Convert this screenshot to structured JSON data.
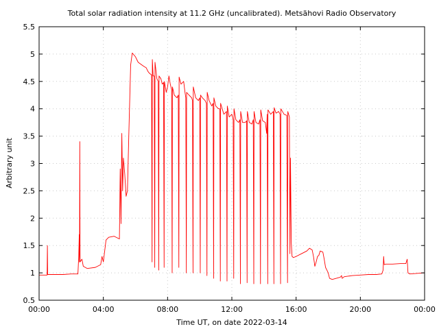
{
  "chart_data": {
    "type": "line",
    "title": "Total solar radiation intensity at 11.2 GHz (uncalibrated). Metsähovi Radio Observatory",
    "xlabel": "Time UT, on date 2022-03-14",
    "ylabel": "Arbitrary unit",
    "xlim": [
      "00:00",
      "24:00"
    ],
    "ylim": [
      0.5,
      5.5
    ],
    "grid": true,
    "x_tick_labels": [
      "00:00",
      "04:00",
      "08:00",
      "12:00",
      "16:00",
      "20:00",
      "00:00"
    ],
    "y_tick_labels": [
      "0.5",
      "1",
      "1.5",
      "2",
      "2.5",
      "3",
      "3.5",
      "4",
      "4.5",
      "5",
      "5.5"
    ],
    "line_color": "#ff0000",
    "series": [
      {
        "points": [
          [
            "00:00",
            0.96
          ],
          [
            "00:30",
            0.96
          ],
          [
            "00:31",
            1.5
          ],
          [
            "00:32",
            0.97
          ],
          [
            "01:00",
            0.97
          ],
          [
            "01:30",
            0.97
          ],
          [
            "02:00",
            0.98
          ],
          [
            "02:25",
            0.98
          ],
          [
            "02:28",
            1.3
          ],
          [
            "02:30",
            1.7
          ],
          [
            "02:31",
            1.2
          ],
          [
            "02:32",
            3.4
          ],
          [
            "02:33",
            1.2
          ],
          [
            "02:40",
            1.25
          ],
          [
            "02:45",
            1.12
          ],
          [
            "03:00",
            1.08
          ],
          [
            "03:30",
            1.1
          ],
          [
            "03:50",
            1.15
          ],
          [
            "03:55",
            1.3
          ],
          [
            "04:00",
            1.2
          ],
          [
            "04:05",
            1.4
          ],
          [
            "04:10",
            1.6
          ],
          [
            "04:20",
            1.65
          ],
          [
            "04:40",
            1.67
          ],
          [
            "05:00",
            1.62
          ],
          [
            "05:03",
            2.9
          ],
          [
            "05:06",
            1.9
          ],
          [
            "05:09",
            3.55
          ],
          [
            "05:12",
            2.5
          ],
          [
            "05:15",
            3.1
          ],
          [
            "05:20",
            2.8
          ],
          [
            "05:25",
            2.4
          ],
          [
            "05:30",
            2.5
          ],
          [
            "05:35",
            3.5
          ],
          [
            "05:42",
            4.8
          ],
          [
            "05:48",
            5.02
          ],
          [
            "06:00",
            4.95
          ],
          [
            "06:10",
            4.85
          ],
          [
            "06:30",
            4.78
          ],
          [
            "06:40",
            4.75
          ],
          [
            "06:47",
            4.68
          ],
          [
            "06:52",
            4.65
          ],
          [
            "07:00",
            4.62
          ],
          [
            "07:02",
            1.2
          ],
          [
            "07:03",
            4.9
          ],
          [
            "07:06",
            4.6
          ],
          [
            "07:10",
            4.6
          ],
          [
            "07:12",
            1.1
          ],
          [
            "07:13",
            4.85
          ],
          [
            "07:20",
            4.55
          ],
          [
            "07:25",
            4.5
          ],
          [
            "07:27",
            1.05
          ],
          [
            "07:28",
            4.6
          ],
          [
            "07:35",
            4.55
          ],
          [
            "07:40",
            4.45
          ],
          [
            "07:45",
            4.48
          ],
          [
            "07:47",
            1.1
          ],
          [
            "07:48",
            4.5
          ],
          [
            "07:55",
            4.3
          ],
          [
            "08:00",
            4.4
          ],
          [
            "08:05",
            4.6
          ],
          [
            "08:10",
            4.45
          ],
          [
            "08:15",
            4.35
          ],
          [
            "08:17",
            1.0
          ],
          [
            "08:18",
            4.4
          ],
          [
            "08:25",
            4.25
          ],
          [
            "08:35",
            4.2
          ],
          [
            "08:40",
            4.25
          ],
          [
            "08:42",
            1.1
          ],
          [
            "08:43",
            4.58
          ],
          [
            "08:50",
            4.45
          ],
          [
            "09:00",
            4.5
          ],
          [
            "09:05",
            4.3
          ],
          [
            "09:08",
            4.2
          ],
          [
            "09:10",
            1.0
          ],
          [
            "09:11",
            4.3
          ],
          [
            "09:20",
            4.25
          ],
          [
            "09:30",
            4.2
          ],
          [
            "09:33",
            4.15
          ],
          [
            "09:35",
            1.0
          ],
          [
            "09:36",
            4.4
          ],
          [
            "09:45",
            4.2
          ],
          [
            "09:55",
            4.15
          ],
          [
            "10:00",
            4.2
          ],
          [
            "10:02",
            1.0
          ],
          [
            "10:03",
            4.25
          ],
          [
            "10:10",
            4.2
          ],
          [
            "10:20",
            4.15
          ],
          [
            "10:25",
            4.1
          ],
          [
            "10:27",
            0.95
          ],
          [
            "10:28",
            4.3
          ],
          [
            "10:35",
            4.15
          ],
          [
            "10:45",
            4.05
          ],
          [
            "10:50",
            4.1
          ],
          [
            "10:52",
            0.9
          ],
          [
            "10:53",
            4.2
          ],
          [
            "11:00",
            4.05
          ],
          [
            "11:10",
            4.0
          ],
          [
            "11:15",
            4.0
          ],
          [
            "11:17",
            0.85
          ],
          [
            "11:18",
            4.1
          ],
          [
            "11:30",
            3.9
          ],
          [
            "11:40",
            3.95
          ],
          [
            "11:42",
            0.85
          ],
          [
            "11:43",
            4.05
          ],
          [
            "11:50",
            3.85
          ],
          [
            "12:00",
            3.9
          ],
          [
            "12:05",
            3.8
          ],
          [
            "12:07",
            0.9
          ],
          [
            "12:08",
            4.0
          ],
          [
            "12:15",
            3.8
          ],
          [
            "12:25",
            3.75
          ],
          [
            "12:30",
            3.8
          ],
          [
            "12:32",
            0.8
          ],
          [
            "12:33",
            3.95
          ],
          [
            "12:40",
            3.75
          ],
          [
            "12:50",
            3.75
          ],
          [
            "12:55",
            3.78
          ],
          [
            "12:57",
            0.82
          ],
          [
            "12:58",
            3.95
          ],
          [
            "13:05",
            3.75
          ],
          [
            "13:15",
            3.72
          ],
          [
            "13:20",
            3.8
          ],
          [
            "13:22",
            0.8
          ],
          [
            "13:23",
            3.95
          ],
          [
            "13:30",
            3.75
          ],
          [
            "13:40",
            3.72
          ],
          [
            "13:45",
            3.8
          ],
          [
            "13:47",
            0.8
          ],
          [
            "13:48",
            3.98
          ],
          [
            "13:55",
            3.78
          ],
          [
            "14:05",
            3.75
          ],
          [
            "14:10",
            3.55
          ],
          [
            "14:12",
            3.9
          ],
          [
            "14:14",
            0.8
          ],
          [
            "14:15",
            3.98
          ],
          [
            "14:25",
            3.9
          ],
          [
            "14:35",
            3.95
          ],
          [
            "14:37",
            0.8
          ],
          [
            "14:38",
            4.02
          ],
          [
            "14:45",
            3.92
          ],
          [
            "14:55",
            3.95
          ],
          [
            "15:00",
            3.9
          ],
          [
            "15:02",
            0.8
          ],
          [
            "15:03",
            4.0
          ],
          [
            "15:15",
            3.9
          ],
          [
            "15:25",
            3.88
          ],
          [
            "15:28",
            0.82
          ],
          [
            "15:29",
            3.95
          ],
          [
            "15:35",
            3.85
          ],
          [
            "15:37",
            1.35
          ],
          [
            "15:39",
            3.1
          ],
          [
            "15:42",
            1.55
          ],
          [
            "15:45",
            1.3
          ],
          [
            "15:50",
            1.28
          ],
          [
            "16:00",
            1.3
          ],
          [
            "16:20",
            1.35
          ],
          [
            "16:40",
            1.4
          ],
          [
            "16:50",
            1.45
          ],
          [
            "17:00",
            1.42
          ],
          [
            "17:05",
            1.3
          ],
          [
            "17:10",
            1.12
          ],
          [
            "17:15",
            1.2
          ],
          [
            "17:20",
            1.3
          ],
          [
            "17:25",
            1.32
          ],
          [
            "17:30",
            1.4
          ],
          [
            "17:40",
            1.38
          ],
          [
            "17:45",
            1.25
          ],
          [
            "17:50",
            1.1
          ],
          [
            "17:55",
            1.05
          ],
          [
            "18:00",
            1.0
          ],
          [
            "18:05",
            0.9
          ],
          [
            "18:15",
            0.88
          ],
          [
            "18:30",
            0.9
          ],
          [
            "18:45",
            0.92
          ],
          [
            "18:50",
            0.95
          ],
          [
            "18:52",
            0.9
          ],
          [
            "19:00",
            0.93
          ],
          [
            "19:30",
            0.95
          ],
          [
            "20:00",
            0.96
          ],
          [
            "20:30",
            0.97
          ],
          [
            "21:00",
            0.97
          ],
          [
            "21:20",
            0.98
          ],
          [
            "21:25",
            1.05
          ],
          [
            "21:27",
            1.3
          ],
          [
            "21:29",
            1.15
          ],
          [
            "21:35",
            1.16
          ],
          [
            "22:00",
            1.16
          ],
          [
            "22:30",
            1.17
          ],
          [
            "22:50",
            1.17
          ],
          [
            "22:55",
            1.25
          ],
          [
            "22:58",
            1.0
          ],
          [
            "23:05",
            0.98
          ],
          [
            "23:30",
            0.99
          ],
          [
            "23:59",
            1.0
          ]
        ]
      }
    ]
  }
}
